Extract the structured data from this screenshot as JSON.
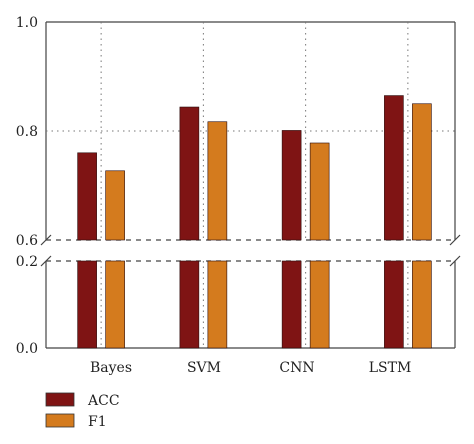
{
  "chart_data": {
    "type": "bar",
    "categories": [
      "Bayes",
      "SVM",
      "CNN",
      "LSTM"
    ],
    "series": [
      {
        "name": "ACC",
        "values": [
          0.76,
          0.844,
          0.801,
          0.865
        ],
        "color": "#7f1414"
      },
      {
        "name": "F1",
        "values": [
          0.727,
          0.817,
          0.778,
          0.85
        ],
        "color": "#d47b1e"
      }
    ],
    "y_ticks_upper": [
      "0.6",
      "0.8",
      "1.0"
    ],
    "y_ticks_lower": [
      "0.0",
      "0.2"
    ],
    "ylim_upper": [
      0.6,
      1.0
    ],
    "ylim_lower": [
      0.0,
      0.2
    ],
    "broken_axis": true,
    "grid": "dotted",
    "legend_position": "bottom-left"
  }
}
